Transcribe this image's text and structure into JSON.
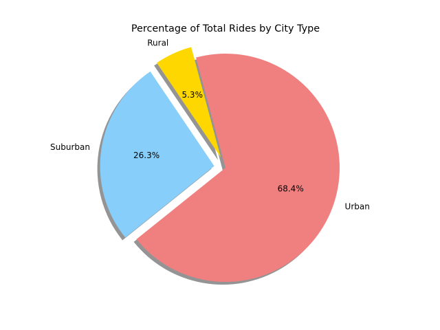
{
  "chart_data": {
    "type": "pie",
    "title": "Percentage of Total Rides by City Type",
    "slices": [
      {
        "label": "Rural",
        "value": 5.3,
        "pct_label": "5.3%",
        "color": "#FFD700",
        "explode": 0.1
      },
      {
        "label": "Suburban",
        "value": 26.3,
        "pct_label": "26.3%",
        "color": "#87CEFA",
        "explode": 0.1
      },
      {
        "label": "Urban",
        "value": 68.4,
        "pct_label": "68.4%",
        "color": "#F08080",
        "explode": 0.0
      }
    ],
    "start_angle_deg": 105,
    "direction": "counterclockwise",
    "shadow": true,
    "legend": "none"
  }
}
